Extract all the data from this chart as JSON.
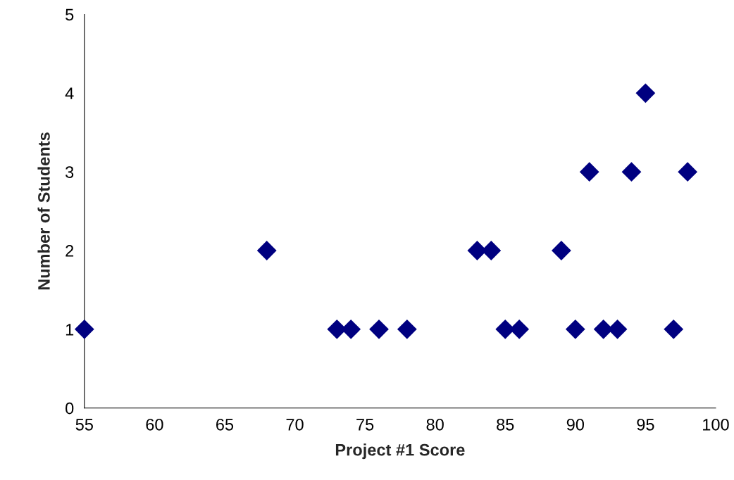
{
  "chart_data": {
    "type": "scatter",
    "xlabel": "Project #1 Score",
    "ylabel": "Number of Students",
    "x": [
      55,
      68,
      73,
      74,
      76,
      78,
      83,
      84,
      85,
      86,
      89,
      90,
      91,
      92,
      93,
      94,
      95,
      97,
      98
    ],
    "series": [
      {
        "color": "#000080",
        "values": [
          1,
          2,
          1,
          1,
          1,
          1,
          2,
          2,
          1,
          1,
          2,
          1,
          3,
          1,
          1,
          3,
          4,
          1,
          3
        ]
      }
    ],
    "xlim": [
      55,
      100
    ],
    "xticks": [
      55,
      60,
      65,
      70,
      75,
      80,
      85,
      90,
      95,
      100
    ],
    "ylim": [
      0,
      5
    ],
    "yticks": [
      0,
      1,
      2,
      3,
      4,
      5
    ],
    "marker": "diamond",
    "grid": false,
    "legend": false
  }
}
